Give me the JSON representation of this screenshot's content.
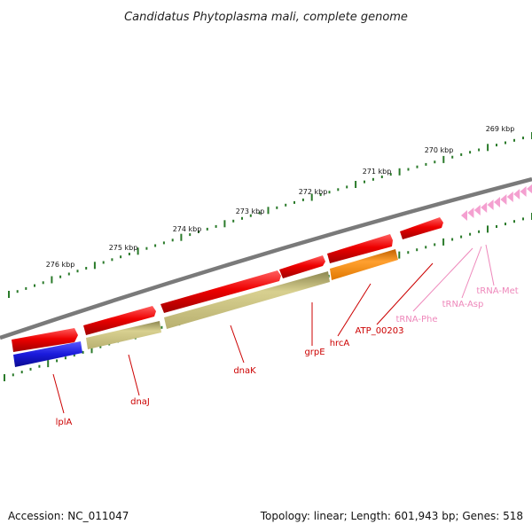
{
  "title": "Candidatus Phytoplasma mali, complete genome",
  "ruler": {
    "ticks": [
      "276 kbp",
      "275 kbp",
      "274 kbp",
      "273 kbp",
      "272 kbp",
      "271 kbp",
      "270 kbp",
      "269 kbp"
    ]
  },
  "genes": [
    {
      "name": "lplA",
      "color": "#cc0000"
    },
    {
      "name": "dnaJ",
      "color": "#cc0000"
    },
    {
      "name": "dnaK",
      "color": "#cc0000"
    },
    {
      "name": "grpE",
      "color": "#cc0000"
    },
    {
      "name": "hrcA",
      "color": "#cc0000"
    },
    {
      "name": "ATP_00203",
      "color": "#cc0000"
    },
    {
      "name": "tRNA-Phe",
      "color": "#ee88bb"
    },
    {
      "name": "tRNA-Asp",
      "color": "#ee88bb"
    },
    {
      "name": "tRNA-Met",
      "color": "#ee88bb"
    }
  ],
  "colors": {
    "cds_forward": "#ee0000",
    "feature_blue": "#1a1adb",
    "feature_khaki": "#c8c078",
    "feature_orange": "#ff8800",
    "trna": "#f4a0d0",
    "backbone": "#808080",
    "ruler": "#2a7a2a"
  },
  "footer": {
    "accession": "Accession: NC_011047",
    "summary": "Topology: linear; Length: 601,943 bp; Genes: 518"
  }
}
